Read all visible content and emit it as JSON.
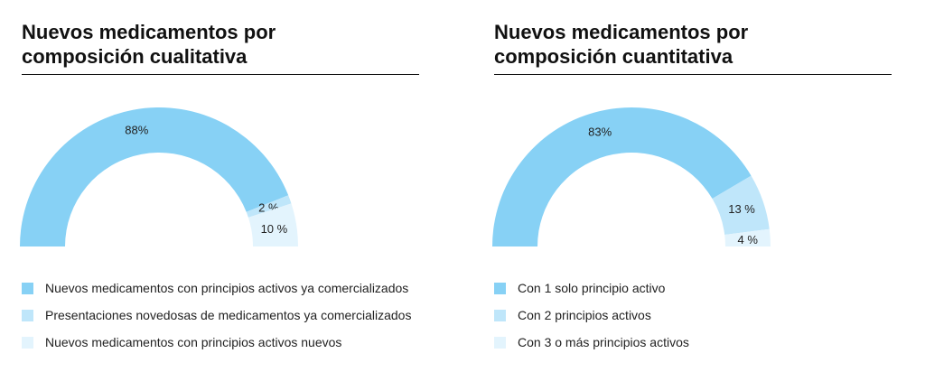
{
  "chart_data": [
    {
      "type": "pie",
      "title": "Nuevos medicamentos por composición cualitativa",
      "title_lines": [
        "Nuevos medicamentos por",
        "composición cualitativa"
      ],
      "series": [
        {
          "name": "Nuevos medicamentos con principios activos ya comercializados",
          "value": 88,
          "label": "88%",
          "color": "#87d1f5"
        },
        {
          "name": "Presentaciones novedosas de medicamentos ya comercializados",
          "value": 2,
          "label": "2 %",
          "color": "#bfe6fa"
        },
        {
          "name": "Nuevos medicamentos con principios activos nuevos",
          "value": 10,
          "label": "10 %",
          "color": "#e3f4fd"
        }
      ]
    },
    {
      "type": "pie",
      "title": "Nuevos medicamentos por composición cuantitativa",
      "title_lines": [
        "Nuevos medicamentos por",
        "composición cuantitativa"
      ],
      "series": [
        {
          "name": "Con 1 solo principio activo",
          "value": 83,
          "label": "83%",
          "color": "#87d1f5"
        },
        {
          "name": "Con 2 principios activos",
          "value": 13,
          "label": "13 %",
          "color": "#bfe6fa"
        },
        {
          "name": "Con 3 o más principios activos",
          "value": 4,
          "label": "4 %",
          "color": "#e3f4fd"
        }
      ]
    }
  ]
}
